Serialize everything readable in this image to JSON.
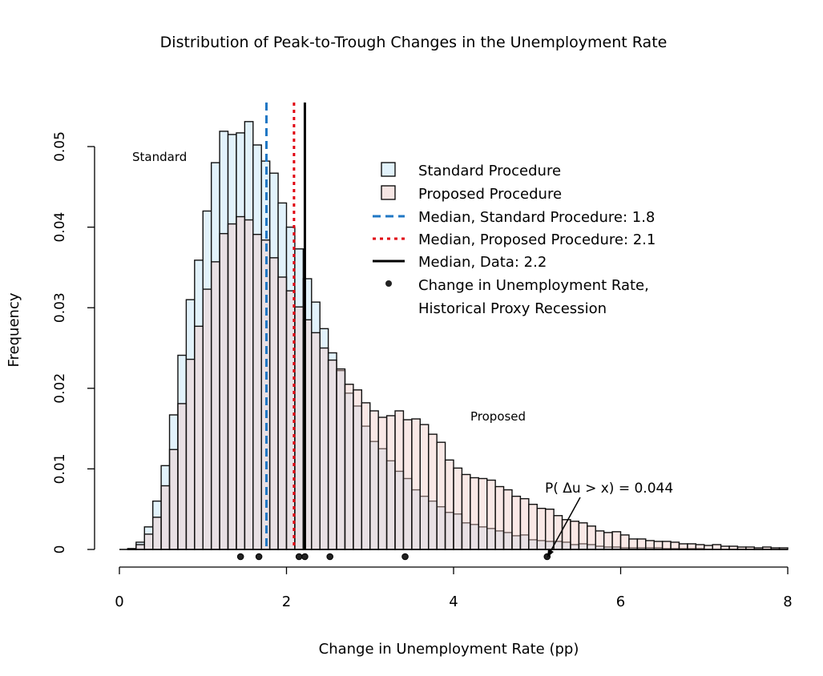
{
  "chart_data": {
    "type": "bar",
    "title": "Distribution of Peak-to-Trough Changes in the Unemployment Rate",
    "xlabel": "Change in Unemployment Rate (pp)",
    "ylabel": "Frequency",
    "xlim": [
      0,
      8
    ],
    "ylim": [
      0,
      0.05
    ],
    "x_ticks": [
      "0",
      "2",
      "4",
      "6",
      "8"
    ],
    "y_ticks": [
      "0",
      "0.01",
      "0.02",
      "0.03",
      "0.04",
      "0.05"
    ],
    "grid": false,
    "legend_position": "top-right",
    "bin_width": 0.1,
    "bin_starts_from": 0.1,
    "series": [
      {
        "name": "Standard Procedure",
        "color": "#e2f2fb",
        "values": [
          0.0001,
          0.0009,
          0.0028,
          0.006,
          0.0104,
          0.0167,
          0.0241,
          0.031,
          0.0359,
          0.042,
          0.048,
          0.0519,
          0.0515,
          0.0517,
          0.0531,
          0.0502,
          0.0482,
          0.0467,
          0.043,
          0.04,
          0.0373,
          0.0336,
          0.0307,
          0.0274,
          0.0244,
          0.0222,
          0.0194,
          0.0178,
          0.0153,
          0.0134,
          0.0125,
          0.011,
          0.0097,
          0.0088,
          0.0074,
          0.0066,
          0.006,
          0.0053,
          0.0046,
          0.0044,
          0.0033,
          0.0031,
          0.0028,
          0.0026,
          0.0023,
          0.0021,
          0.0017,
          0.0018,
          0.0012,
          0.0011,
          0.001,
          0.001,
          0.0009,
          0.0006,
          0.0007,
          0.0006,
          0.0004,
          0.0003,
          0.0003,
          0.0002,
          0.0002,
          0.0002,
          0.0002,
          0.0002,
          0.0001,
          0.0001,
          0.0001,
          0.0001,
          0.0001,
          0.0,
          0.0,
          0.0,
          0.0,
          0.0,
          0.0,
          0.0,
          0.0,
          0.0,
          0.0
        ]
      },
      {
        "name": "Proposed Procedure",
        "color": "#f6e6e4",
        "values": [
          0.0001,
          0.0006,
          0.0019,
          0.004,
          0.0079,
          0.0124,
          0.0181,
          0.0236,
          0.0277,
          0.0323,
          0.0357,
          0.0392,
          0.0404,
          0.0413,
          0.0409,
          0.0391,
          0.0384,
          0.0362,
          0.0338,
          0.0321,
          0.0301,
          0.0285,
          0.0269,
          0.025,
          0.0235,
          0.0224,
          0.0205,
          0.0198,
          0.0182,
          0.0172,
          0.0164,
          0.0166,
          0.0172,
          0.0161,
          0.0162,
          0.0155,
          0.0143,
          0.0133,
          0.0111,
          0.0101,
          0.0093,
          0.0089,
          0.0088,
          0.0086,
          0.0078,
          0.0074,
          0.0066,
          0.0063,
          0.0056,
          0.0051,
          0.005,
          0.0042,
          0.0037,
          0.0035,
          0.0033,
          0.0029,
          0.0023,
          0.0021,
          0.0022,
          0.0018,
          0.0013,
          0.0013,
          0.0011,
          0.001,
          0.001,
          0.0009,
          0.0007,
          0.0007,
          0.0006,
          0.0005,
          0.0006,
          0.0004,
          0.0004,
          0.0003,
          0.0003,
          0.0002,
          0.0003,
          0.0002,
          0.0002
        ]
      }
    ],
    "medians": [
      {
        "label": "Median, Standard Procedure: 1.8",
        "value": 1.76,
        "color": "#1f77c4",
        "style": "dashed"
      },
      {
        "label": "Median, Proposed Procedure: 2.1",
        "value": 2.09,
        "color": "#e0000f",
        "style": "dotted"
      },
      {
        "label": "Median, Data: 2.2",
        "value": 2.22,
        "color": "#000000",
        "style": "solid"
      }
    ],
    "points": {
      "label_line1": "Change in Unemployment Rate,",
      "label_line2": "Historical Proxy Recession",
      "x": [
        1.45,
        1.67,
        2.15,
        2.22,
        2.52,
        3.42,
        5.12
      ]
    },
    "annotations": {
      "standard": "Standard",
      "proposed": "Proposed",
      "probability": "P( Δu > x) = 0.044"
    }
  }
}
